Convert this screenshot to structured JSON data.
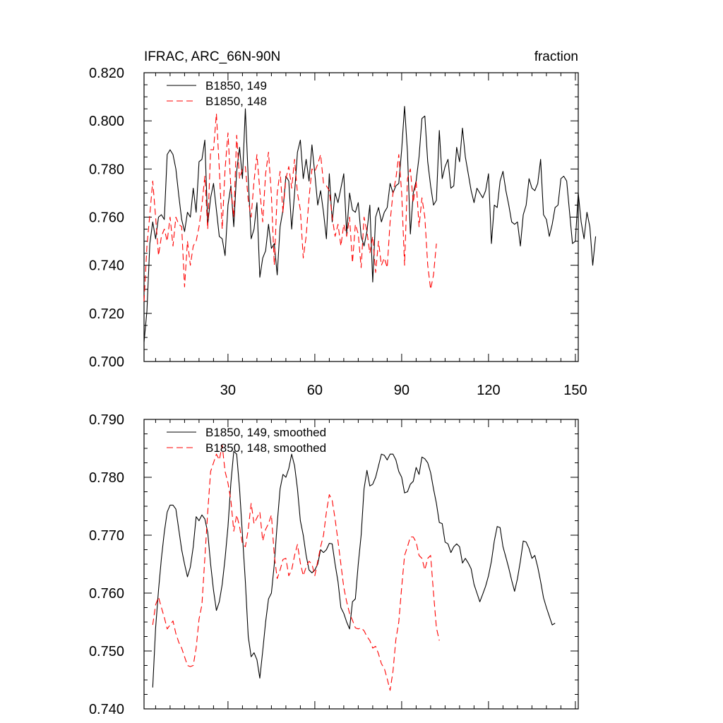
{
  "chart_data": [
    {
      "type": "line",
      "title": "IFRAC, ARC_66N-90N",
      "units_label": "fraction",
      "xlim": [
        1,
        151
      ],
      "ylim": [
        0.7,
        0.82
      ],
      "x_ticks": [
        30,
        60,
        90,
        120,
        150
      ],
      "x_tick_labels": [
        "30",
        "60",
        "90",
        "120",
        "150"
      ],
      "y_ticks": [
        0.7,
        0.72,
        0.74,
        0.76,
        0.78,
        0.8,
        0.82
      ],
      "y_tick_labels": [
        "0.700",
        "0.720",
        "0.740",
        "0.760",
        "0.780",
        "0.800",
        "0.820"
      ],
      "legend_position": "top-left",
      "series": [
        {
          "name": "B1850, 149",
          "color": "#000000",
          "dash": "solid",
          "x_start": 1,
          "values": [
            0.708,
            0.721,
            0.749,
            0.758,
            0.751,
            0.76,
            0.761,
            0.759,
            0.786,
            0.788,
            0.786,
            0.78,
            0.769,
            0.759,
            0.754,
            0.762,
            0.76,
            0.772,
            0.762,
            0.783,
            0.784,
            0.792,
            0.757,
            0.768,
            0.774,
            0.763,
            0.752,
            0.751,
            0.744,
            0.765,
            0.773,
            0.756,
            0.779,
            0.789,
            0.776,
            0.805,
            0.776,
            0.751,
            0.755,
            0.766,
            0.735,
            0.743,
            0.746,
            0.757,
            0.747,
            0.749,
            0.736,
            0.756,
            0.763,
            0.777,
            0.775,
            0.755,
            0.77,
            0.787,
            0.792,
            0.776,
            0.784,
            0.775,
            0.79,
            0.778,
            0.765,
            0.771,
            0.762,
            0.751,
            0.778,
            0.758,
            0.77,
            0.766,
            0.772,
            0.778,
            0.753,
            0.77,
            0.763,
            0.762,
            0.766,
            0.752,
            0.748,
            0.754,
            0.765,
            0.733,
            0.76,
            0.764,
            0.758,
            0.762,
            0.764,
            0.774,
            0.77,
            0.773,
            0.774,
            0.788,
            0.806,
            0.787,
            0.753,
            0.77,
            0.775,
            0.785,
            0.801,
            0.802,
            0.783,
            0.773,
            0.765,
            0.767,
            0.796,
            0.776,
            0.781,
            0.784,
            0.772,
            0.773,
            0.789,
            0.783,
            0.797,
            0.785,
            0.778,
            0.771,
            0.766,
            0.772,
            0.77,
            0.768,
            0.771,
            0.778,
            0.749,
            0.765,
            0.764,
            0.775,
            0.779,
            0.771,
            0.765,
            0.758,
            0.757,
            0.758,
            0.748,
            0.761,
            0.765,
            0.776,
            0.772,
            0.771,
            0.774,
            0.784,
            0.761,
            0.759,
            0.752,
            0.757,
            0.764,
            0.765,
            0.776,
            0.777,
            0.775,
            0.762,
            0.749,
            0.75,
            0.77,
            0.758,
            0.751,
            0.762,
            0.756,
            0.74,
            0.752
          ]
        },
        {
          "name": "B1850, 148",
          "color": "#ff0000",
          "dash": "dashed",
          "x_start": 1,
          "values": [
            0.725,
            0.748,
            0.761,
            0.775,
            0.76,
            0.744,
            0.752,
            0.755,
            0.75,
            0.76,
            0.748,
            0.76,
            0.757,
            0.756,
            0.731,
            0.75,
            0.74,
            0.748,
            0.75,
            0.756,
            0.765,
            0.777,
            0.755,
            0.788,
            0.788,
            0.803,
            0.78,
            0.755,
            0.78,
            0.795,
            0.772,
            0.76,
            0.794,
            0.776,
            0.78,
            0.781,
            0.767,
            0.76,
            0.775,
            0.786,
            0.771,
            0.758,
            0.778,
            0.787,
            0.769,
            0.74,
            0.77,
            0.779,
            0.762,
            0.776,
            0.781,
            0.772,
            0.784,
            0.77,
            0.763,
            0.743,
            0.752,
            0.768,
            0.78,
            0.779,
            0.782,
            0.786,
            0.774,
            0.773,
            0.771,
            0.76,
            0.752,
            0.757,
            0.748,
            0.757,
            0.752,
            0.76,
            0.741,
            0.757,
            0.753,
            0.739,
            0.76,
            0.754,
            0.745,
            0.752,
            0.737,
            0.75,
            0.74,
            0.743,
            0.739,
            0.758,
            0.77,
            0.776,
            0.786,
            0.77,
            0.74,
            0.776,
            0.78,
            0.766,
            0.775,
            0.756,
            0.768,
            0.76,
            0.74,
            0.73,
            0.736,
            0.749
          ]
        }
      ]
    },
    {
      "type": "line",
      "title": "",
      "xlim": [
        1,
        151
      ],
      "ylim": [
        0.74,
        0.79
      ],
      "x_ticks": [
        30,
        60,
        90,
        120,
        150
      ],
      "y_ticks": [
        0.74,
        0.75,
        0.76,
        0.77,
        0.78,
        0.79
      ],
      "y_tick_labels": [
        "0.740",
        "0.750",
        "0.760",
        "0.770",
        "0.780",
        "0.790"
      ],
      "legend_position": "top-left",
      "series": [
        {
          "name": "B1850, 149, smoothed",
          "color": "#000000",
          "dash": "solid",
          "x_start": 4,
          "values": [
            0.7437,
            0.754,
            0.7605,
            0.766,
            0.7705,
            0.774,
            0.7752,
            0.7752,
            0.7745,
            0.771,
            0.7675,
            0.765,
            0.7628,
            0.7645,
            0.768,
            0.7732,
            0.7725,
            0.7735,
            0.7728,
            0.7705,
            0.765,
            0.7605,
            0.757,
            0.7585,
            0.7615,
            0.766,
            0.7715,
            0.779,
            0.7845,
            0.784,
            0.778,
            0.77,
            0.762,
            0.7525,
            0.749,
            0.7497,
            0.7485,
            0.7453,
            0.75,
            0.755,
            0.759,
            0.76,
            0.765,
            0.772,
            0.778,
            0.7805,
            0.78,
            0.7815,
            0.784,
            0.782,
            0.778,
            0.7725,
            0.77,
            0.7665,
            0.764,
            0.7635,
            0.764,
            0.765,
            0.7675,
            0.767,
            0.7675,
            0.7686,
            0.7685,
            0.765,
            0.762,
            0.7575,
            0.7565,
            0.755,
            0.7538,
            0.7585,
            0.759,
            0.765,
            0.77,
            0.778,
            0.7812,
            0.7785,
            0.7788,
            0.78,
            0.782,
            0.784,
            0.7838,
            0.783,
            0.784,
            0.784,
            0.783,
            0.781,
            0.78,
            0.7773,
            0.7775,
            0.7788,
            0.7793,
            0.7817,
            0.7805,
            0.7835,
            0.7832,
            0.7825,
            0.7808,
            0.778,
            0.7755,
            0.7722,
            0.772,
            0.7688,
            0.7685,
            0.767,
            0.768,
            0.7685,
            0.768,
            0.7652,
            0.766,
            0.7652,
            0.7642,
            0.7615,
            0.76,
            0.7585,
            0.7598,
            0.7612,
            0.763,
            0.7655,
            0.769,
            0.7715,
            0.7713,
            0.768,
            0.7662,
            0.7643,
            0.7622,
            0.7603,
            0.7625,
            0.7655,
            0.769,
            0.7688,
            0.7677,
            0.766,
            0.7665,
            0.7645,
            0.762,
            0.7592,
            0.7575,
            0.756,
            0.7545,
            0.7548
          ]
        },
        {
          "name": "B1850, 148, smoothed",
          "color": "#ff0000",
          "dash": "dashed",
          "x_start": 4,
          "values": [
            0.7545,
            0.758,
            0.7593,
            0.7575,
            0.7558,
            0.7538,
            0.7545,
            0.7552,
            0.753,
            0.7515,
            0.7505,
            0.749,
            0.7475,
            0.7473,
            0.7475,
            0.7505,
            0.7555,
            0.758,
            0.766,
            0.774,
            0.781,
            0.7825,
            0.784,
            0.783,
            0.7855,
            0.781,
            0.779,
            0.776,
            0.7707,
            0.7735,
            0.7715,
            0.7685,
            0.768,
            0.771,
            0.7755,
            0.772,
            0.773,
            0.774,
            0.769,
            0.771,
            0.772,
            0.7735,
            0.7665,
            0.7625,
            0.764,
            0.7658,
            0.766,
            0.763,
            0.764,
            0.7665,
            0.7684,
            0.7652,
            0.763,
            0.7645,
            0.7655,
            0.765,
            0.763,
            0.7655,
            0.768,
            0.77,
            0.774,
            0.777,
            0.776,
            0.7728,
            0.769,
            0.765,
            0.761,
            0.7585,
            0.7565,
            0.7553,
            0.754,
            0.7538,
            0.754,
            0.7535,
            0.7525,
            0.7518,
            0.7505,
            0.7508,
            0.7495,
            0.7478,
            0.747,
            0.7452,
            0.7432,
            0.7465,
            0.752,
            0.755,
            0.761,
            0.7665,
            0.768,
            0.7697,
            0.7697,
            0.7688,
            0.7665,
            0.766,
            0.764,
            0.766,
            0.7665,
            0.76,
            0.754,
            0.7518
          ]
        }
      ]
    }
  ]
}
